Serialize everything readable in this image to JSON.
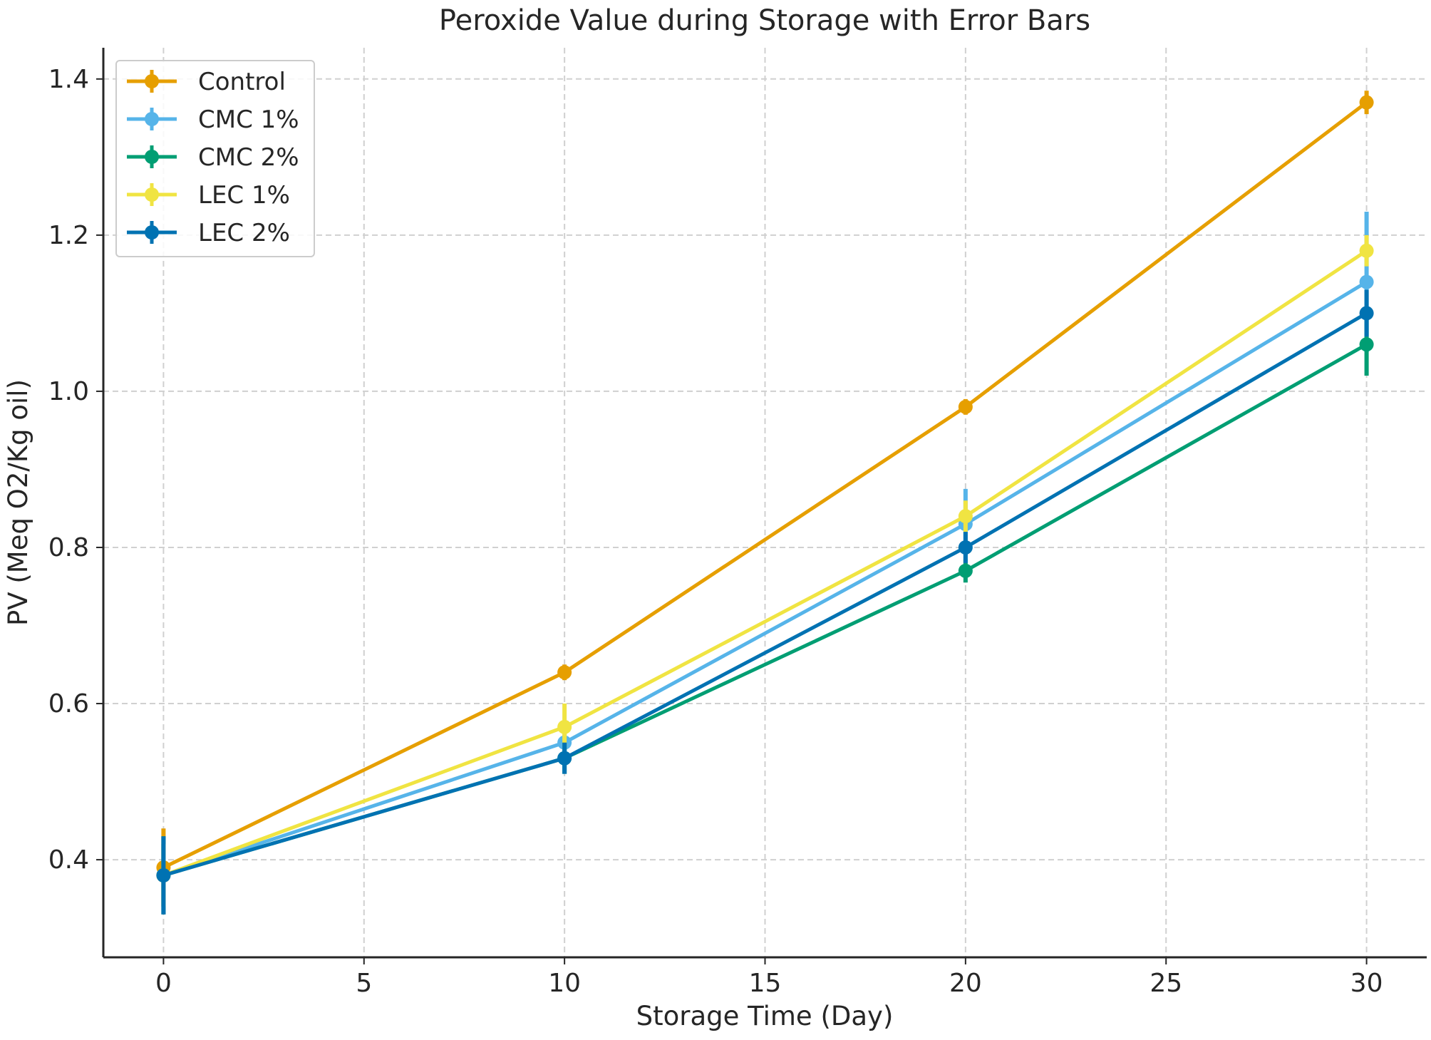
{
  "chart_data": {
    "type": "line",
    "title": "Peroxide Value during Storage with Error Bars",
    "xlabel": "Storage Time (Day)",
    "ylabel": "PV (Meq O2/Kg oil)",
    "xlim": [
      -1.5,
      31.5
    ],
    "ylim": [
      0.275,
      1.44
    ],
    "xticks": [
      0,
      5,
      10,
      15,
      20,
      25,
      30
    ],
    "yticks": [
      0.4,
      0.6,
      0.8,
      1.0,
      1.2,
      1.4
    ],
    "ytick_labels": [
      "0.4",
      "0.6",
      "0.8",
      "1.0",
      "1.2",
      "1.4"
    ],
    "grid": true,
    "legend_position": "top-left",
    "x": [
      0,
      10,
      20,
      30
    ],
    "series": [
      {
        "name": "Control",
        "color": "#E69F00",
        "values": [
          0.39,
          0.64,
          0.98,
          1.37
        ],
        "errors": [
          0.05,
          0.01,
          0.01,
          0.015
        ]
      },
      {
        "name": "CMC 1%",
        "color": "#56B4E9",
        "values": [
          0.38,
          0.55,
          0.83,
          1.14
        ],
        "errors": [
          0.04,
          0.02,
          0.045,
          0.09
        ]
      },
      {
        "name": "CMC 2%",
        "color": "#009E73",
        "values": [
          0.38,
          0.53,
          0.77,
          1.06
        ],
        "errors": [
          0.05,
          0.02,
          0.015,
          0.04
        ]
      },
      {
        "name": "LEC 1%",
        "color": "#F0E442",
        "values": [
          0.38,
          0.57,
          0.84,
          1.18
        ],
        "errors": [
          0.04,
          0.03,
          0.02,
          0.02
        ]
      },
      {
        "name": "LEC 2%",
        "color": "#0072B2",
        "values": [
          0.38,
          0.53,
          0.8,
          1.1
        ],
        "errors": [
          0.05,
          0.02,
          0.02,
          0.03
        ]
      }
    ]
  }
}
